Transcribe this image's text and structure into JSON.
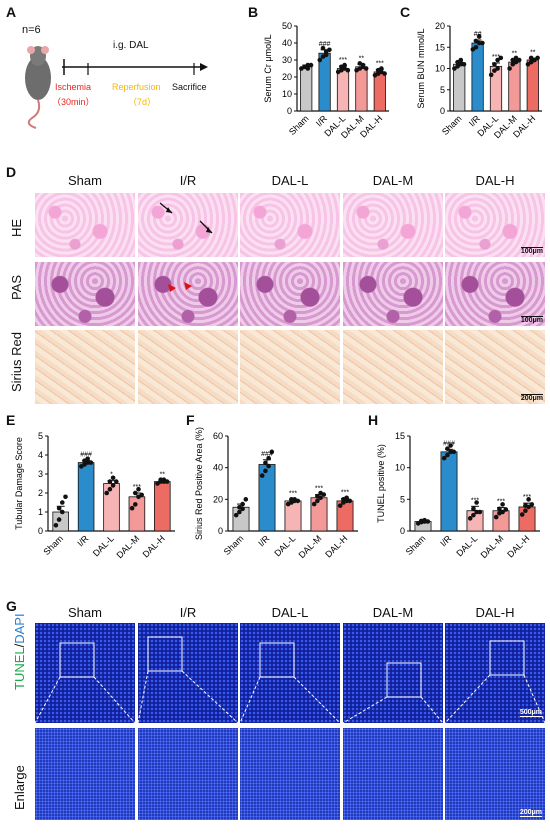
{
  "panels": {
    "A": "A",
    "B": "B",
    "C": "C",
    "D": "D",
    "E": "E",
    "F": "F",
    "H": "H",
    "G": "G"
  },
  "schematic": {
    "n": "n=6",
    "drug": "i.g. DAL",
    "ischemia": "Ischemia",
    "ischemia_time": "（30min）",
    "reperfusion": "Reperfusion",
    "reperfusion_time": "（7d）",
    "sacrifice": "Sacrifice",
    "colors": {
      "ischemia": "#e8261c",
      "reperfusion": "#f5b800"
    }
  },
  "histology": {
    "columns": [
      "Sham",
      "I/R",
      "DAL-L",
      "DAL-M",
      "DAL-H"
    ],
    "rows": [
      "HE",
      "PAS",
      "Sirius Red"
    ],
    "scalebars": [
      "100μm",
      "100μm",
      "200μm"
    ]
  },
  "tunel_images": {
    "columns": [
      "Sham",
      "I/R",
      "DAL-L",
      "DAL-M",
      "DAL-H"
    ],
    "row1_label_a": "TUNEL",
    "row1_label_sep": "/",
    "row1_label_b": "DAPI",
    "row2_label": "Enlarge",
    "scalebars": [
      "500μm",
      "200μm"
    ],
    "label_colors": {
      "tunel": "#1aa84a",
      "dapi": "#2a7fd4"
    }
  },
  "chart_data": [
    {
      "id": "B",
      "type": "bar",
      "categories": [
        "Sham",
        "I/R",
        "DAL-L",
        "DAL-M",
        "DAL-H"
      ],
      "values": [
        26,
        34,
        25,
        26,
        23
      ],
      "errors": [
        1,
        2,
        1.5,
        1.5,
        1.5
      ],
      "ylabel": "Serum Cr μmol/L",
      "ylim": [
        0,
        50
      ],
      "yticks": [
        0,
        10,
        20,
        30,
        40,
        50
      ],
      "annotations": [
        "",
        "###",
        "***",
        "**",
        "***"
      ],
      "colors": [
        "#c8c8c8",
        "#2b8ccb",
        "#f6b4b4",
        "#f39a98",
        "#ec6b63"
      ],
      "points": [
        [
          25,
          26,
          27,
          26,
          25,
          27
        ],
        [
          30,
          32,
          35,
          37,
          33,
          36
        ],
        [
          23,
          24,
          25,
          26,
          27,
          24
        ],
        [
          24,
          25,
          27,
          28,
          26,
          25
        ],
        [
          21,
          22,
          23,
          24,
          25,
          22
        ]
      ]
    },
    {
      "id": "C",
      "type": "bar",
      "categories": [
        "Sham",
        "I/R",
        "DAL-L",
        "DAL-M",
        "DAL-H"
      ],
      "values": [
        11,
        16,
        10.5,
        11.5,
        12
      ],
      "errors": [
        0.5,
        0.7,
        0.8,
        0.6,
        0.4
      ],
      "ylabel": "Serum BUN mmol/L",
      "ylim": [
        0,
        20
      ],
      "yticks": [
        0,
        5,
        10,
        15,
        20
      ],
      "annotations": [
        "",
        "##",
        "***",
        "**",
        "**"
      ],
      "colors": [
        "#c8c8c8",
        "#2b8ccb",
        "#f6b4b4",
        "#f39a98",
        "#ec6b63"
      ],
      "points": [
        [
          10,
          10.5,
          11,
          11.5,
          12,
          11
        ],
        [
          14.5,
          15,
          16,
          16.5,
          17.5,
          16
        ],
        [
          8.5,
          9.5,
          10,
          11,
          12,
          12.5
        ],
        [
          10,
          11,
          11.5,
          12,
          12.5,
          12
        ],
        [
          11,
          11.5,
          12,
          12.5,
          12,
          12.5
        ]
      ]
    },
    {
      "id": "E",
      "type": "bar",
      "categories": [
        "Sham",
        "I/R",
        "DAL-L",
        "DAL-M",
        "DAL-H"
      ],
      "values": [
        1.0,
        3.6,
        2.5,
        1.8,
        2.6
      ],
      "errors": [
        0.3,
        0.1,
        0.15,
        0.2,
        0.07
      ],
      "ylabel": "Tubular Damage Score",
      "ylim": [
        0,
        5
      ],
      "yticks": [
        0,
        1,
        2,
        3,
        4,
        5
      ],
      "annotations": [
        "",
        "###",
        "*",
        "***",
        "**"
      ],
      "colors": [
        "#c8c8c8",
        "#2b8ccb",
        "#f6b4b4",
        "#f39a98",
        "#ec6b63"
      ],
      "points": [
        [
          0.3,
          0.6,
          1.0,
          1.2,
          1.5,
          1.8
        ],
        [
          3.4,
          3.5,
          3.6,
          3.7,
          3.8,
          3.6
        ],
        [
          2.0,
          2.2,
          2.4,
          2.6,
          2.8,
          2.6
        ],
        [
          1.2,
          1.4,
          1.8,
          2.0,
          2.2,
          1.9
        ],
        [
          2.5,
          2.6,
          2.6,
          2.7,
          2.7,
          2.6
        ]
      ]
    },
    {
      "id": "F",
      "type": "bar",
      "categories": [
        "Sham",
        "I/R",
        "DAL-L",
        "DAL-M",
        "DAL-H"
      ],
      "values": [
        15,
        42,
        19,
        21,
        19
      ],
      "errors": [
        2,
        3,
        1,
        2,
        1.5
      ],
      "ylabel": "Sirius Red Positive Area (%)",
      "ylim": [
        0,
        60
      ],
      "yticks": [
        0,
        20,
        40,
        60
      ],
      "annotations": [
        "",
        "###",
        "***",
        "***",
        "***"
      ],
      "colors": [
        "#c8c8c8",
        "#2b8ccb",
        "#f6b4b4",
        "#f39a98",
        "#ec6b63"
      ],
      "points": [
        [
          10,
          12,
          14,
          15,
          17,
          20
        ],
        [
          35,
          38,
          41,
          43,
          46,
          50
        ],
        [
          17,
          18,
          19,
          20,
          20,
          19
        ],
        [
          17,
          19,
          21,
          22,
          24,
          23
        ],
        [
          16,
          18,
          19,
          20,
          21,
          19
        ]
      ]
    },
    {
      "id": "H",
      "type": "bar",
      "categories": [
        "Sham",
        "I/R",
        "DAL-L",
        "DAL-M",
        "DAL-H"
      ],
      "values": [
        1.5,
        12.5,
        3.2,
        3.2,
        3.8
      ],
      "errors": [
        0.2,
        0.4,
        0.7,
        0.5,
        0.6
      ],
      "ylabel": "TUNEL positive (%)",
      "ylim": [
        0,
        15
      ],
      "yticks": [
        0,
        5,
        10,
        15
      ],
      "annotations": [
        "",
        "###",
        "***",
        "***",
        "***"
      ],
      "colors": [
        "#c8c8c8",
        "#2b8ccb",
        "#f6b4b4",
        "#f39a98",
        "#ec6b63"
      ],
      "points": [
        [
          1.2,
          1.4,
          1.5,
          1.6,
          1.7,
          1.5
        ],
        [
          11.5,
          12,
          12.5,
          13,
          13.5,
          12.5
        ],
        [
          2,
          2.5,
          3,
          3.5,
          4.5,
          3
        ],
        [
          2.2,
          2.8,
          3,
          3.5,
          4.2,
          3.4
        ],
        [
          2.6,
          3.2,
          3.8,
          4,
          5,
          4.2
        ]
      ]
    }
  ]
}
